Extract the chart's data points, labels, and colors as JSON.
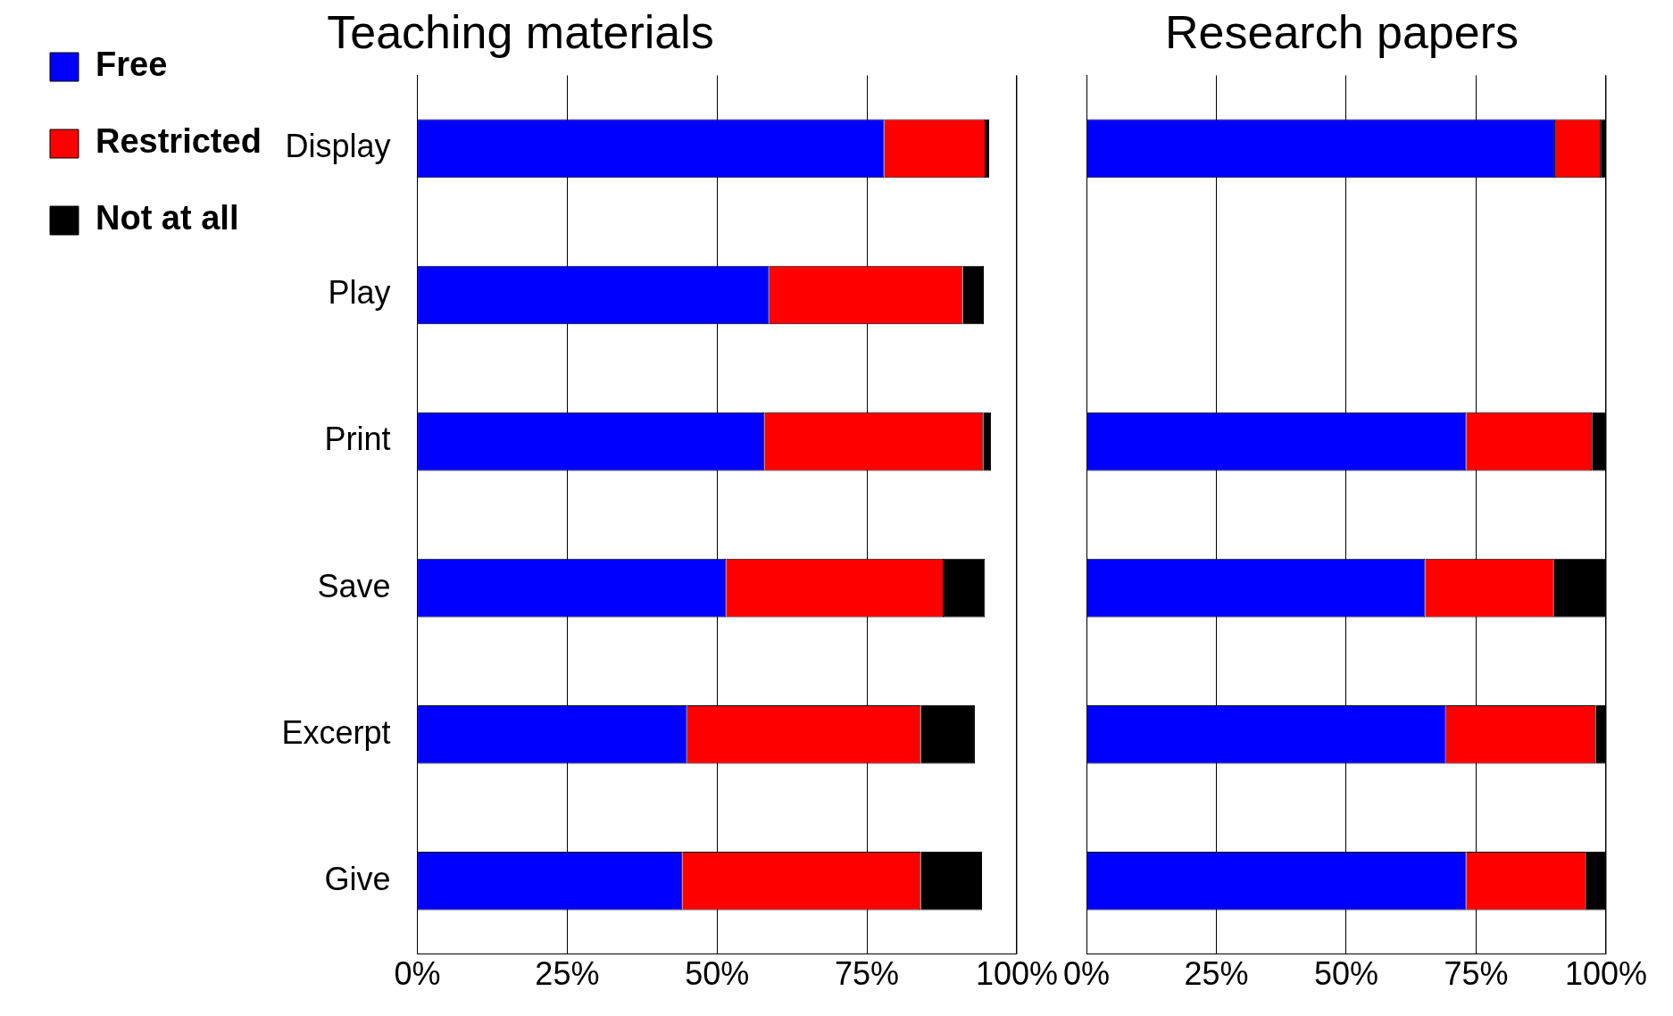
{
  "chart_data": [
    {
      "type": "bar",
      "orientation": "horizontal",
      "stacked": true,
      "title": "Teaching materials",
      "categories": [
        "Display",
        "Play",
        "Print",
        "Save",
        "Excerpt",
        "Give"
      ],
      "series": [
        {
          "name": "Free",
          "color": "#0000ff",
          "values": [
            77.9,
            58.7,
            57.9,
            51.5,
            45,
            44.2
          ]
        },
        {
          "name": "Restricted",
          "color": "#ff0000",
          "values": [
            16.9,
            32.3,
            36.5,
            36.3,
            39,
            39.8
          ]
        },
        {
          "name": "Not at all",
          "color": "#000000",
          "values": [
            0.6,
            3.5,
            1.3,
            6.9,
            9,
            10.2
          ]
        }
      ],
      "xlim": [
        0,
        100
      ],
      "xticks": [
        {
          "value": 0,
          "label": "0%"
        },
        {
          "value": 25,
          "label": "25%"
        },
        {
          "value": 50,
          "label": "50%"
        },
        {
          "value": 75,
          "label": "75%"
        },
        {
          "value": 100,
          "label": "100%"
        }
      ],
      "grid": "x",
      "legend": "left"
    },
    {
      "type": "bar",
      "orientation": "horizontal",
      "stacked": true,
      "title": "Research papers",
      "categories": [
        null,
        null,
        null,
        null,
        null,
        null
      ],
      "series": [
        {
          "color": "#0000ff",
          "values": [
            90.2,
            null,
            73.1,
            65.2,
            69.2,
            73.1
          ]
        },
        {
          "color": "#ff0000",
          "values": [
            8.8,
            null,
            24.2,
            24.8,
            28.8,
            23.1
          ]
        },
        {
          "color": "#000000",
          "values": [
            1,
            null,
            2.7,
            10,
            2,
            3.8
          ]
        }
      ],
      "xlim": [
        0,
        100
      ],
      "xticks": [
        {
          "value": 0,
          "label": "0%"
        },
        {
          "value": 25,
          "label": "25%"
        },
        {
          "value": 50,
          "label": "50%"
        },
        {
          "value": 75,
          "label": "75%"
        },
        {
          "value": 100,
          "label": "100%"
        }
      ],
      "grid": "x",
      "tick_labels": "x",
      "legend": false
    }
  ]
}
